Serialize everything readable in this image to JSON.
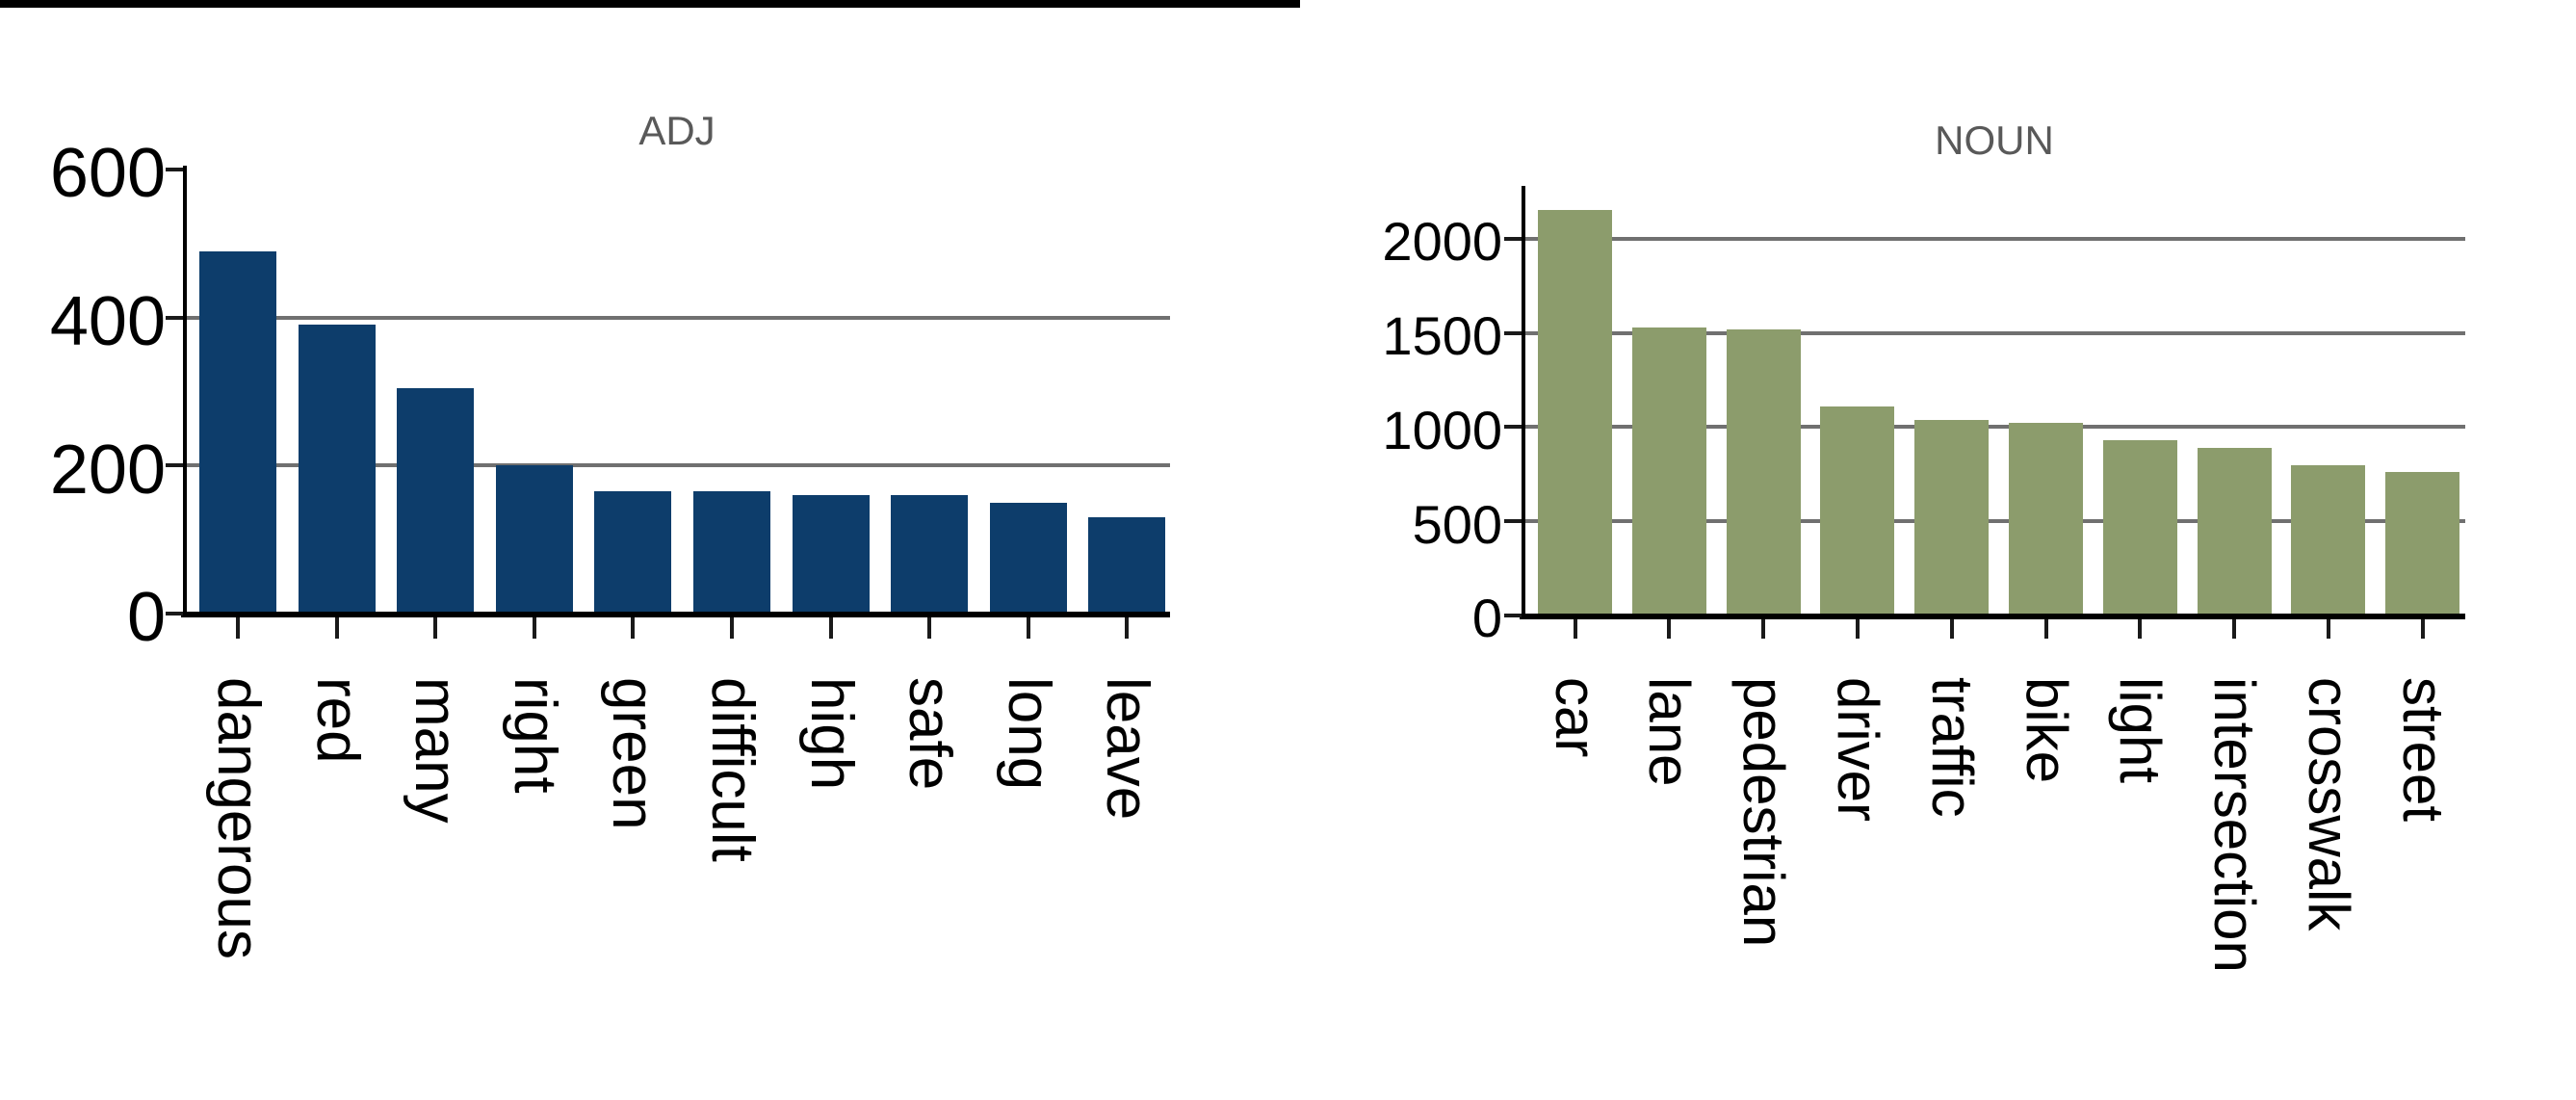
{
  "figure": {
    "background": "#ffffff",
    "top_rule_color": "#000000",
    "axis_color": "#000000",
    "tick_color": "#1a1a1a"
  },
  "chart_data": [
    {
      "type": "bar",
      "title": "ADJ",
      "title_color": "#595959",
      "bar_color": "#0d3d6b",
      "grid_color": "#707070",
      "categories": [
        "dangerous",
        "red",
        "many",
        "right",
        "green",
        "difficult",
        "high",
        "safe",
        "long",
        "leave"
      ],
      "values": [
        490,
        390,
        305,
        200,
        165,
        165,
        160,
        160,
        150,
        130
      ],
      "xlabel": "",
      "ylabel": "",
      "y_ticks": [
        0,
        200,
        400,
        600
      ],
      "gridline_values": [
        200,
        400
      ],
      "ylim": [
        0,
        605
      ],
      "legend": "none",
      "grid": "horizontal"
    },
    {
      "type": "bar",
      "title": "NOUN",
      "title_color": "#595959",
      "bar_color": "#8c9c6c",
      "grid_color": "#707070",
      "categories": [
        "car",
        "lane",
        "pedestrian",
        "driver",
        "traffic",
        "bike",
        "light",
        "intersection",
        "crosswalk",
        "street"
      ],
      "values": [
        2150,
        1530,
        1520,
        1110,
        1040,
        1020,
        930,
        890,
        800,
        760
      ],
      "xlabel": "",
      "ylabel": "",
      "y_ticks": [
        0,
        500,
        1000,
        1500,
        2000
      ],
      "gridline_values": [
        500,
        1000,
        1500,
        2000
      ],
      "ylim": [
        0,
        2280
      ],
      "legend": "none",
      "grid": "horizontal"
    }
  ]
}
